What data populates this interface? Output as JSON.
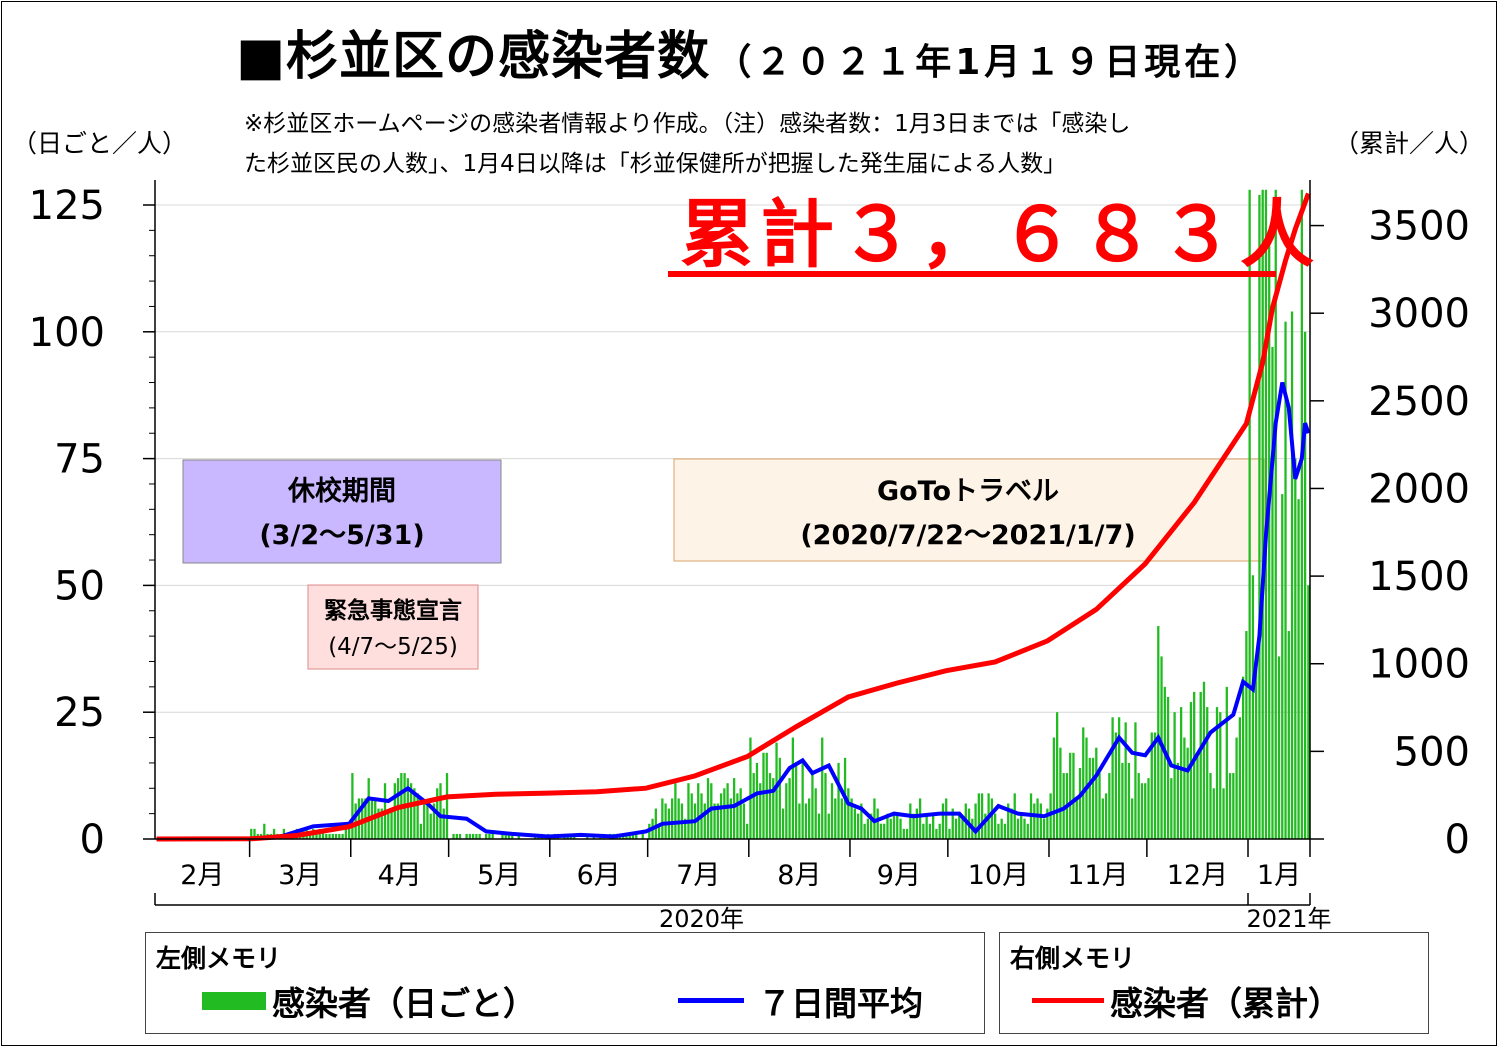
{
  "title": "■杉並区の感染者数",
  "title_date": "（２０２１年1月１９日現在）",
  "notes": [
    "※杉並区ホームページの感染者情報より作成。（注）感染者数：1月3日までは「感染し",
    "た杉並区民の人数」、1月4日以降は「杉並保健所が把握した発生届による人数」"
  ],
  "left_axis_unit": "（日ごと／人）",
  "right_axis_unit": "（累計／人）",
  "total_label": "累計３，６８３人",
  "periods": {
    "school_closure": {
      "label": "休校期間",
      "range": "(3/2〜5/31)",
      "color": "#c9b8ff"
    },
    "emergency": {
      "label": "緊急事態宣言",
      "range": "(4/7〜5/25)",
      "color": "#ffdede"
    },
    "goto": {
      "label": "GoToトラベル",
      "range": "(2020/7/22〜2021/1/7)",
      "color": "#fdf1e2"
    }
  },
  "legend": {
    "left_title": "左側メモリ",
    "right_title": "右側メモリ",
    "daily_label": "感染者（日ごと）",
    "avg_label": "７日間平均",
    "cumulative_label": "感染者（累計）"
  },
  "chart_data": {
    "type": "bar",
    "title": "杉並区の感染者数",
    "x_start": "2020-02-01",
    "x_end": "2021-01-19",
    "month_ticks": [
      "2月",
      "3月",
      "4月",
      "5月",
      "6月",
      "7月",
      "8月",
      "9月",
      "10月",
      "11月",
      "12月",
      "1月"
    ],
    "years": [
      "2020年",
      "2021年"
    ],
    "ylim_left": [
      0,
      125
    ],
    "yticks_left": [
      0,
      25,
      50,
      75,
      100,
      125
    ],
    "ylim_right": [
      0,
      3760
    ],
    "yticks_right": [
      0,
      500,
      1000,
      1500,
      2000,
      2500,
      3000,
      3500
    ],
    "colors": {
      "daily": "#22bb22",
      "avg": "#0000ff",
      "cumulative": "#ff0000"
    },
    "series": [
      {
        "name": "感染者（日ごと）",
        "axis": "left",
        "monthly_typical_daily": {
          "2月": 0,
          "3月": 1.5,
          "4月": 8,
          "5月": 0.7,
          "6月": 0.8,
          "7月": 7,
          "8月": 12,
          "9月": 5,
          "10月": 5.5,
          "11月": 15,
          "12月": 25,
          "1月": 85
        },
        "peak": {
          "date": "2021-01-09",
          "value": 128
        }
      },
      {
        "name": "７日間平均",
        "axis": "left",
        "points": [
          [
            "2020-02-01",
            0
          ],
          [
            "2020-03-01",
            0
          ],
          [
            "2020-03-10",
            0.5
          ],
          [
            "2020-03-20",
            2.5
          ],
          [
            "2020-03-31",
            3
          ],
          [
            "2020-04-06",
            8
          ],
          [
            "2020-04-12",
            7.5
          ],
          [
            "2020-04-18",
            10
          ],
          [
            "2020-04-24",
            7
          ],
          [
            "2020-04-28",
            4.5
          ],
          [
            "2020-05-06",
            4
          ],
          [
            "2020-05-12",
            1.5
          ],
          [
            "2020-05-20",
            1
          ],
          [
            "2020-05-31",
            0.5
          ],
          [
            "2020-06-10",
            0.8
          ],
          [
            "2020-06-20",
            0.5
          ],
          [
            "2020-06-30",
            1.5
          ],
          [
            "2020-07-05",
            3
          ],
          [
            "2020-07-15",
            3.5
          ],
          [
            "2020-07-20",
            6
          ],
          [
            "2020-07-27",
            6.5
          ],
          [
            "2020-08-03",
            9
          ],
          [
            "2020-08-08",
            9.5
          ],
          [
            "2020-08-13",
            14
          ],
          [
            "2020-08-17",
            15.5
          ],
          [
            "2020-08-20",
            13
          ],
          [
            "2020-08-25",
            14.5
          ],
          [
            "2020-08-31",
            7
          ],
          [
            "2020-09-04",
            6
          ],
          [
            "2020-09-08",
            3.5
          ],
          [
            "2020-09-14",
            5
          ],
          [
            "2020-09-20",
            4.5
          ],
          [
            "2020-09-28",
            5
          ],
          [
            "2020-10-04",
            5
          ],
          [
            "2020-10-09",
            1.5
          ],
          [
            "2020-10-16",
            6.5
          ],
          [
            "2020-10-22",
            5
          ],
          [
            "2020-10-30",
            4.5
          ],
          [
            "2020-11-05",
            6
          ],
          [
            "2020-11-10",
            8.5
          ],
          [
            "2020-11-15",
            12.5
          ],
          [
            "2020-11-22",
            20
          ],
          [
            "2020-11-26",
            17
          ],
          [
            "2020-11-30",
            16.5
          ],
          [
            "2020-12-04",
            20
          ],
          [
            "2020-12-08",
            14.5
          ],
          [
            "2020-12-13",
            13.5
          ],
          [
            "2020-12-20",
            21
          ],
          [
            "2020-12-27",
            24.5
          ],
          [
            "2020-12-30",
            31
          ],
          [
            "2021-01-02",
            29.5
          ],
          [
            "2021-01-04",
            40
          ],
          [
            "2021-01-06",
            60
          ],
          [
            "2021-01-09",
            82
          ],
          [
            "2021-01-11",
            90
          ],
          [
            "2021-01-13",
            85
          ],
          [
            "2021-01-15",
            71
          ],
          [
            "2021-01-17",
            75
          ],
          [
            "2021-01-18",
            82
          ],
          [
            "2021-01-19",
            80
          ]
        ]
      },
      {
        "name": "感染者（累計）",
        "axis": "right",
        "points": [
          [
            "2020-02-01",
            0
          ],
          [
            "2020-03-01",
            1
          ],
          [
            "2020-03-15",
            20
          ],
          [
            "2020-03-31",
            70
          ],
          [
            "2020-04-15",
            180
          ],
          [
            "2020-04-30",
            240
          ],
          [
            "2020-05-15",
            255
          ],
          [
            "2020-05-31",
            262
          ],
          [
            "2020-06-15",
            270
          ],
          [
            "2020-06-30",
            290
          ],
          [
            "2020-07-15",
            360
          ],
          [
            "2020-07-31",
            470
          ],
          [
            "2020-08-15",
            640
          ],
          [
            "2020-08-31",
            810
          ],
          [
            "2020-09-15",
            890
          ],
          [
            "2020-09-30",
            960
          ],
          [
            "2020-10-15",
            1010
          ],
          [
            "2020-10-31",
            1130
          ],
          [
            "2020-11-15",
            1310
          ],
          [
            "2020-11-30",
            1570
          ],
          [
            "2020-12-15",
            1920
          ],
          [
            "2020-12-31",
            2370
          ],
          [
            "2021-01-05",
            2720
          ],
          [
            "2021-01-08",
            3030
          ],
          [
            "2021-01-12",
            3300
          ],
          [
            "2021-01-15",
            3480
          ],
          [
            "2021-01-19",
            3683
          ]
        ]
      }
    ]
  }
}
